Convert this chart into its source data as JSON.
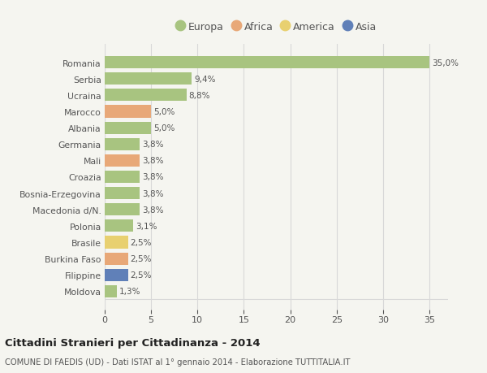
{
  "categories": [
    "Moldova",
    "Filippine",
    "Burkina Faso",
    "Brasile",
    "Polonia",
    "Macedonia d/N.",
    "Bosnia-Erzegovina",
    "Croazia",
    "Mali",
    "Germania",
    "Albania",
    "Marocco",
    "Ucraina",
    "Serbia",
    "Romania"
  ],
  "values": [
    1.3,
    2.5,
    2.5,
    2.5,
    3.1,
    3.8,
    3.8,
    3.8,
    3.8,
    3.8,
    5.0,
    5.0,
    8.8,
    9.4,
    35.0
  ],
  "labels": [
    "1,3%",
    "2,5%",
    "2,5%",
    "2,5%",
    "3,1%",
    "3,8%",
    "3,8%",
    "3,8%",
    "3,8%",
    "3,8%",
    "5,0%",
    "5,0%",
    "8,8%",
    "9,4%",
    "35,0%"
  ],
  "continents": [
    "Europa",
    "Asia",
    "Africa",
    "America",
    "Europa",
    "Europa",
    "Europa",
    "Europa",
    "Africa",
    "Europa",
    "Europa",
    "Africa",
    "Europa",
    "Europa",
    "Europa"
  ],
  "continent_colors": {
    "Europa": "#a8c480",
    "Africa": "#e8a878",
    "America": "#e8d070",
    "Asia": "#6080b8"
  },
  "legend_order": [
    "Europa",
    "Africa",
    "America",
    "Asia"
  ],
  "title": "Cittadini Stranieri per Cittadinanza - 2014",
  "subtitle": "COMUNE DI FAEDIS (UD) - Dati ISTAT al 1° gennaio 2014 - Elaborazione TUTTITALIA.IT",
  "xlim": [
    0,
    37
  ],
  "xticks": [
    0,
    5,
    10,
    15,
    20,
    25,
    30,
    35
  ],
  "background_color": "#f5f5f0",
  "bar_height": 0.75,
  "grid_color": "#d8d8d8",
  "text_color": "#555555"
}
